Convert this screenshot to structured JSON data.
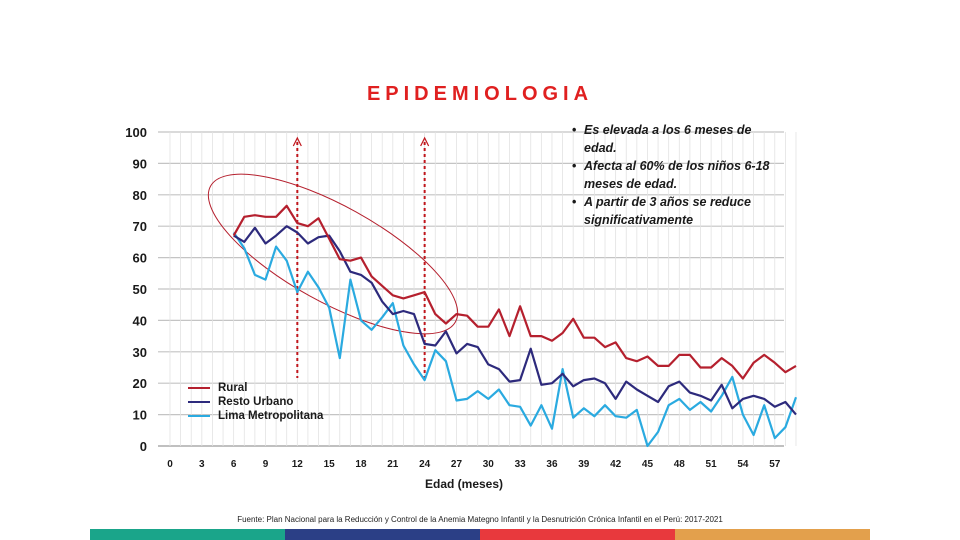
{
  "title": "EPIDEMIOLOGIA",
  "notes": [
    "Es elevada a los 6 meses de edad.",
    "Afecta al 60% de los niños 6-18 meses de edad.",
    "A partir de 3 años se reduce significativamente"
  ],
  "source": "Fuente: Plan Nacional para la Reducción y Control de la Anemia Mategno Infantil y la Desnutrición Crónica Infantil en el Perú: 2017-2021",
  "bottom_bar_colors": [
    "#1aa58a",
    "#2b3f86",
    "#e8393d",
    "#e3a04c"
  ],
  "chart_data": {
    "type": "line",
    "xlabel": "Edad (meses)",
    "ylabel": "",
    "xlim": [
      0,
      59
    ],
    "ylim": [
      0,
      100
    ],
    "x_ticks": [
      0,
      3,
      6,
      9,
      12,
      15,
      18,
      21,
      24,
      27,
      30,
      33,
      36,
      39,
      42,
      45,
      48,
      51,
      54,
      57
    ],
    "y_ticks": [
      0,
      10,
      20,
      30,
      40,
      50,
      60,
      70,
      80,
      90,
      100
    ],
    "grid": true,
    "legend": "bottom-left",
    "reference_lines_x": [
      12,
      24
    ],
    "x": [
      6,
      7,
      8,
      9,
      10,
      11,
      12,
      13,
      14,
      15,
      16,
      17,
      18,
      19,
      20,
      21,
      22,
      23,
      24,
      25,
      26,
      27,
      28,
      29,
      30,
      31,
      32,
      33,
      34,
      35,
      36,
      37,
      38,
      39,
      40,
      41,
      42,
      43,
      44,
      45,
      46,
      47,
      48,
      49,
      50,
      51,
      52,
      53,
      54,
      55,
      56,
      57,
      58,
      59
    ],
    "series": [
      {
        "name": "Rural",
        "color": "#b5202e",
        "values": [
          67,
          73,
          73.5,
          73,
          73,
          76.5,
          71,
          70,
          72.5,
          66,
          59.5,
          59,
          60,
          54,
          51,
          48,
          47,
          48,
          49,
          42,
          39,
          42,
          41.5,
          38,
          38,
          43.5,
          35,
          44.5,
          35,
          35,
          33.5,
          36,
          40.5,
          34.5,
          34.5,
          31.5,
          33,
          28,
          27,
          28.5,
          25.5,
          25.5,
          29,
          29,
          25,
          25,
          28,
          25.5,
          21.5,
          26.5,
          29,
          26.5,
          23.5,
          25.5
        ]
      },
      {
        "name": "Resto Urbano",
        "color": "#2d2a7c",
        "values": [
          67,
          65,
          69.5,
          64.5,
          67,
          70,
          68,
          64.5,
          66.5,
          67,
          62,
          55.5,
          54.5,
          52,
          46,
          42,
          43,
          42,
          32.5,
          32,
          36.5,
          29.5,
          32.5,
          31.5,
          26,
          24.5,
          20.5,
          21,
          31,
          19.5,
          20,
          23,
          19,
          21,
          21.5,
          20,
          15,
          20.5,
          18,
          16,
          14,
          19,
          20.5,
          17,
          16,
          14.5,
          19.5,
          12,
          15,
          16,
          15,
          12.5,
          14,
          10
        ]
      },
      {
        "name": "Lima Metropolitana",
        "color": "#2aaae0",
        "values": [
          68,
          63,
          54.5,
          53,
          63.5,
          59,
          49,
          55.5,
          50.5,
          44,
          28,
          53,
          40,
          37,
          41,
          45.5,
          32,
          26,
          21,
          30.5,
          27,
          14.5,
          15,
          17.5,
          15,
          18,
          13,
          12.5,
          6.5,
          13,
          5.5,
          24.5,
          9,
          12,
          9.5,
          13,
          9.5,
          9,
          11.5,
          0,
          4.5,
          13,
          15,
          11.5,
          14,
          11,
          16,
          22,
          10,
          3.5,
          13,
          2.5,
          6,
          15.5
        ]
      }
    ]
  }
}
